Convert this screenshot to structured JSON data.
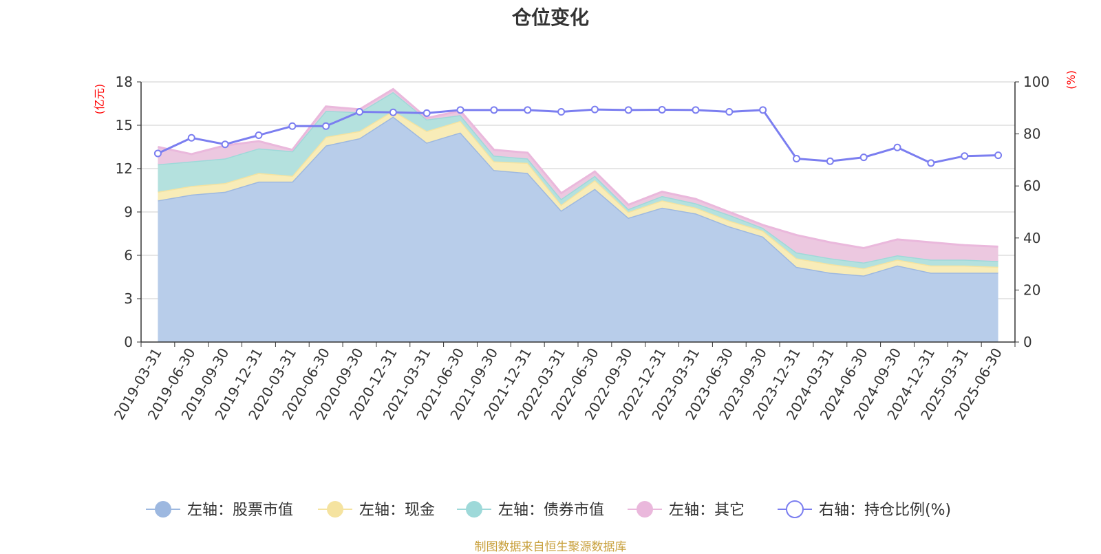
{
  "chart_data": {
    "type": "area",
    "title": "仓位变化",
    "left_axis": {
      "unit": "(亿元)",
      "ylim": [
        0,
        18
      ],
      "ticks": [
        "0",
        "3",
        "6",
        "9",
        "12",
        "15",
        "18"
      ]
    },
    "right_axis": {
      "unit": "(%)",
      "ylim": [
        0,
        100
      ],
      "ticks": [
        "0",
        "20",
        "40",
        "60",
        "80",
        "100"
      ]
    },
    "categories": [
      "2019-03-31",
      "2019-06-30",
      "2019-09-30",
      "2019-12-31",
      "2020-03-31",
      "2020-06-30",
      "2020-09-30",
      "2020-12-31",
      "2021-03-31",
      "2021-06-30",
      "2021-09-30",
      "2021-12-31",
      "2022-03-31",
      "2022-06-30",
      "2022-09-30",
      "2022-12-31",
      "2023-03-31",
      "2023-06-30",
      "2023-09-30",
      "2023-12-31",
      "2024-03-31",
      "2024-06-30",
      "2024-09-30",
      "2024-12-31",
      "2025-03-31",
      "2025-06-30"
    ],
    "grid": true,
    "legend_position": "bottom",
    "series": [
      {
        "name": "左轴：股票市值",
        "axis": "left",
        "color": "#9db8e0",
        "fill": "#b8cdea",
        "values": [
          9.8,
          10.2,
          10.4,
          11.1,
          11.1,
          13.6,
          14.1,
          15.6,
          13.8,
          14.5,
          11.9,
          11.7,
          9.1,
          10.6,
          8.6,
          9.3,
          8.9,
          8.0,
          7.3,
          5.2,
          4.8,
          4.6,
          5.3,
          4.8,
          4.8,
          4.8
        ]
      },
      {
        "name": "左轴：现金",
        "axis": "left",
        "color": "#f5e3a0",
        "fill": "#f8ecb8",
        "values": [
          0.6,
          0.6,
          0.6,
          0.6,
          0.4,
          0.6,
          0.5,
          0.4,
          0.8,
          0.8,
          0.6,
          0.7,
          0.4,
          0.6,
          0.4,
          0.5,
          0.4,
          0.4,
          0.4,
          0.6,
          0.6,
          0.5,
          0.4,
          0.5,
          0.5,
          0.4
        ]
      },
      {
        "name": "左轴：债券市值",
        "axis": "left",
        "color": "#9ed9d9",
        "fill": "#b4e1de",
        "values": [
          1.9,
          1.7,
          1.7,
          1.7,
          1.7,
          1.8,
          1.3,
          1.3,
          0.8,
          0.4,
          0.4,
          0.3,
          0.4,
          0.3,
          0.2,
          0.3,
          0.3,
          0.4,
          0.2,
          0.4,
          0.4,
          0.4,
          0.3,
          0.4,
          0.4,
          0.4
        ]
      },
      {
        "name": "左轴：其它",
        "axis": "left",
        "color": "#eab8dc",
        "fill": "#ecc8e0",
        "values": [
          1.2,
          0.5,
          0.9,
          0.5,
          0.1,
          0.3,
          0.2,
          0.2,
          0.1,
          0.3,
          0.4,
          0.4,
          0.4,
          0.3,
          0.3,
          0.3,
          0.3,
          0.2,
          0.2,
          1.2,
          1.1,
          1.0,
          1.1,
          1.2,
          1.0,
          1.0
        ]
      },
      {
        "name": "右轴：持仓比例(%)",
        "axis": "right",
        "type": "line",
        "color": "#7b7ef0",
        "values": [
          72.5,
          78.5,
          76,
          79.5,
          83,
          83,
          88.5,
          88.3,
          88,
          89.2,
          89.2,
          89.2,
          88.5,
          89.4,
          89.2,
          89.3,
          89.2,
          88.5,
          89.2,
          70.5,
          69.5,
          71,
          74.8,
          68.8,
          71.5,
          71.8
        ]
      }
    ]
  },
  "footer": {
    "source": "制图数据来自恒生聚源数据库"
  }
}
